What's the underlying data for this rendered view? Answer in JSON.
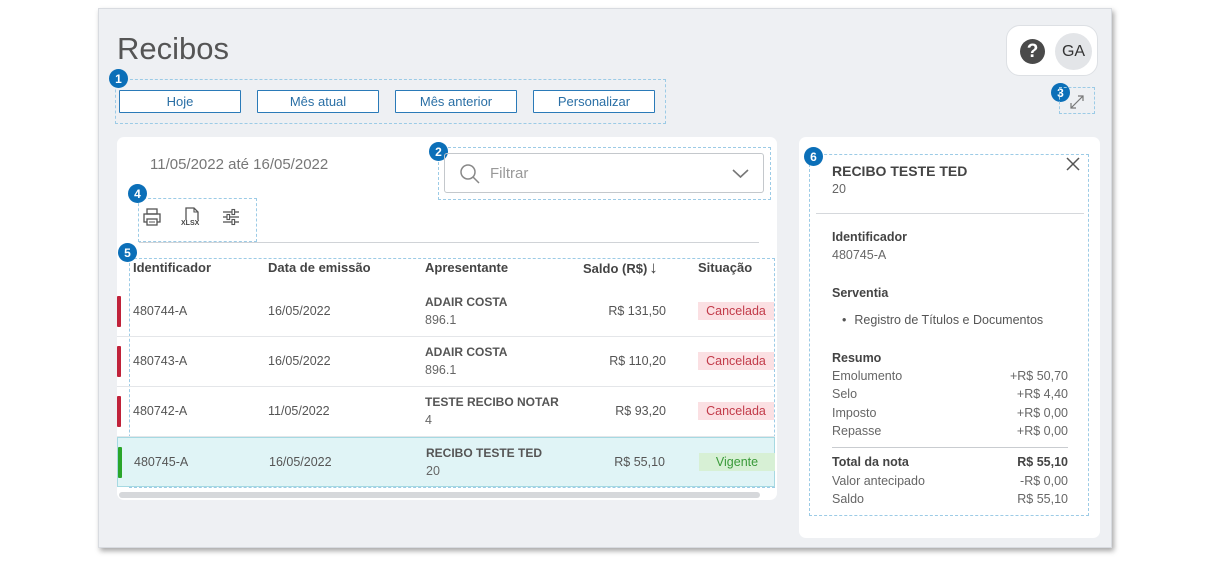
{
  "page": {
    "title": "Recibos"
  },
  "badges": [
    "1",
    "2",
    "3",
    "4",
    "5",
    "6"
  ],
  "period_buttons": [
    "Hoje",
    "Mês atual",
    "Mês anterior",
    "Personalizar"
  ],
  "user": {
    "initials": "GA",
    "help_glyph": "?"
  },
  "list": {
    "date_range": "11/05/2022 até 16/05/2022",
    "filter_placeholder": "Filtrar",
    "toolbar": {
      "xlsx_label": "XLSX"
    },
    "columns": [
      "Identificador",
      "Data de emissão",
      "Apresentante",
      "Saldo (R$)",
      "Situação"
    ],
    "sort_arrow": "↓",
    "rows": [
      {
        "id": "480744-A",
        "date": "16/05/2022",
        "presenter": "ADAIR COSTA",
        "presenter_num": "896.1",
        "saldo": "R$ 131,50",
        "status": "Cancelada",
        "status_type": "cancel",
        "bar_color": "#c0223a",
        "selected": false
      },
      {
        "id": "480743-A",
        "date": "16/05/2022",
        "presenter": "ADAIR COSTA",
        "presenter_num": "896.1",
        "saldo": "R$ 110,20",
        "status": "Cancelada",
        "status_type": "cancel",
        "bar_color": "#c0223a",
        "selected": false
      },
      {
        "id": "480742-A",
        "date": "11/05/2022",
        "presenter": "TESTE RECIBO NOTAR",
        "presenter_num": "4",
        "saldo": "R$ 93,20",
        "status": "Cancelada",
        "status_type": "cancel",
        "bar_color": "#c0223a",
        "selected": false
      },
      {
        "id": "480745-A",
        "date": "16/05/2022",
        "presenter": "RECIBO TESTE TED",
        "presenter_num": "20",
        "saldo": "R$ 55,10",
        "status": "Vigente",
        "status_type": "valid",
        "bar_color": "#2aa52a",
        "selected": true
      }
    ]
  },
  "detail": {
    "title": "RECIBO TESTE TED",
    "subtitle": "20",
    "identifier_label": "Identificador",
    "identifier_value": "480745-A",
    "serventia_label": "Serventia",
    "serventia_item": "Registro de Títulos e Documentos",
    "resumo_label": "Resumo",
    "resumo": [
      {
        "label": "Emolumento",
        "value": "+R$ 50,70"
      },
      {
        "label": "Selo",
        "value": "+R$ 4,40"
      },
      {
        "label": "Imposto",
        "value": "+R$ 0,00"
      },
      {
        "label": "Repasse",
        "value": "+R$ 0,00"
      }
    ],
    "totals": [
      {
        "label": "Total da nota",
        "value": "R$ 55,10",
        "bold": true
      },
      {
        "label": "Valor antecipado",
        "value": "-R$ 0,00",
        "bold": false
      },
      {
        "label": "Saldo",
        "value": "R$ 55,10",
        "bold": false
      }
    ]
  },
  "colors": {
    "accent": "#0b6fb8",
    "cancel_bar": "#c0223a",
    "valid_bar": "#2aa52a"
  }
}
